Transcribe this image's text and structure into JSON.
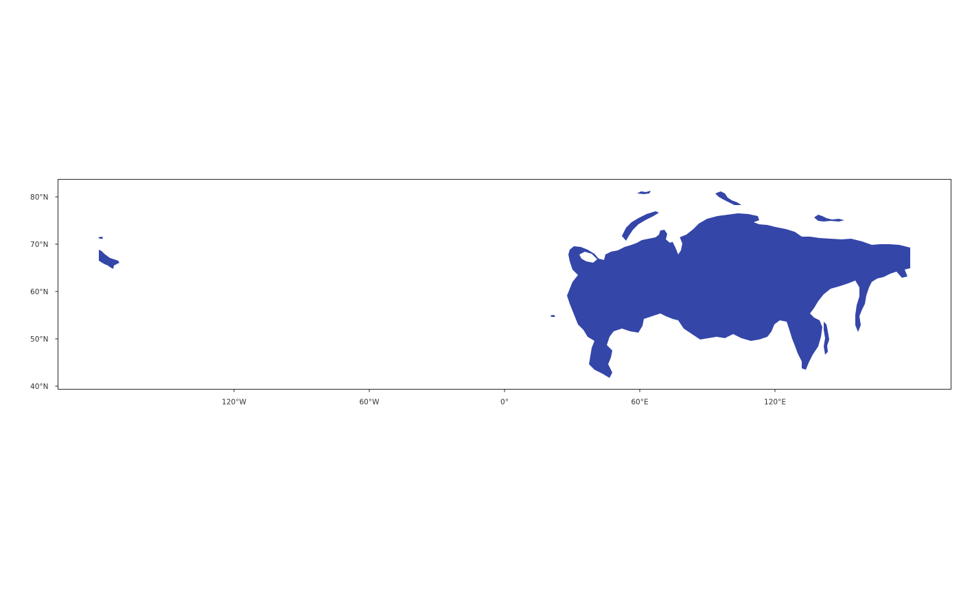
{
  "map": {
    "projection": "equirectangular",
    "extent": {
      "lon": [
        -170,
        180
      ],
      "lat": [
        40,
        84
      ]
    },
    "fill_color": "#3446A8",
    "background": "#ffffff",
    "grid": false,
    "x_axis": {
      "ticks": [
        {
          "lon": -120,
          "label": "120°W"
        },
        {
          "lon": -60,
          "label": "60°W"
        },
        {
          "lon": 0,
          "label": "0°"
        },
        {
          "lon": 60,
          "label": "60°E"
        },
        {
          "lon": 120,
          "label": "120°E"
        }
      ]
    },
    "y_axis": {
      "ticks": [
        {
          "lat": 40,
          "label": "40°N"
        },
        {
          "lat": 50,
          "label": "50°N"
        },
        {
          "lat": 60,
          "label": "60°N"
        },
        {
          "lat": 70,
          "label": "70°N"
        },
        {
          "lat": 80,
          "label": "80°N"
        }
      ]
    }
  }
}
